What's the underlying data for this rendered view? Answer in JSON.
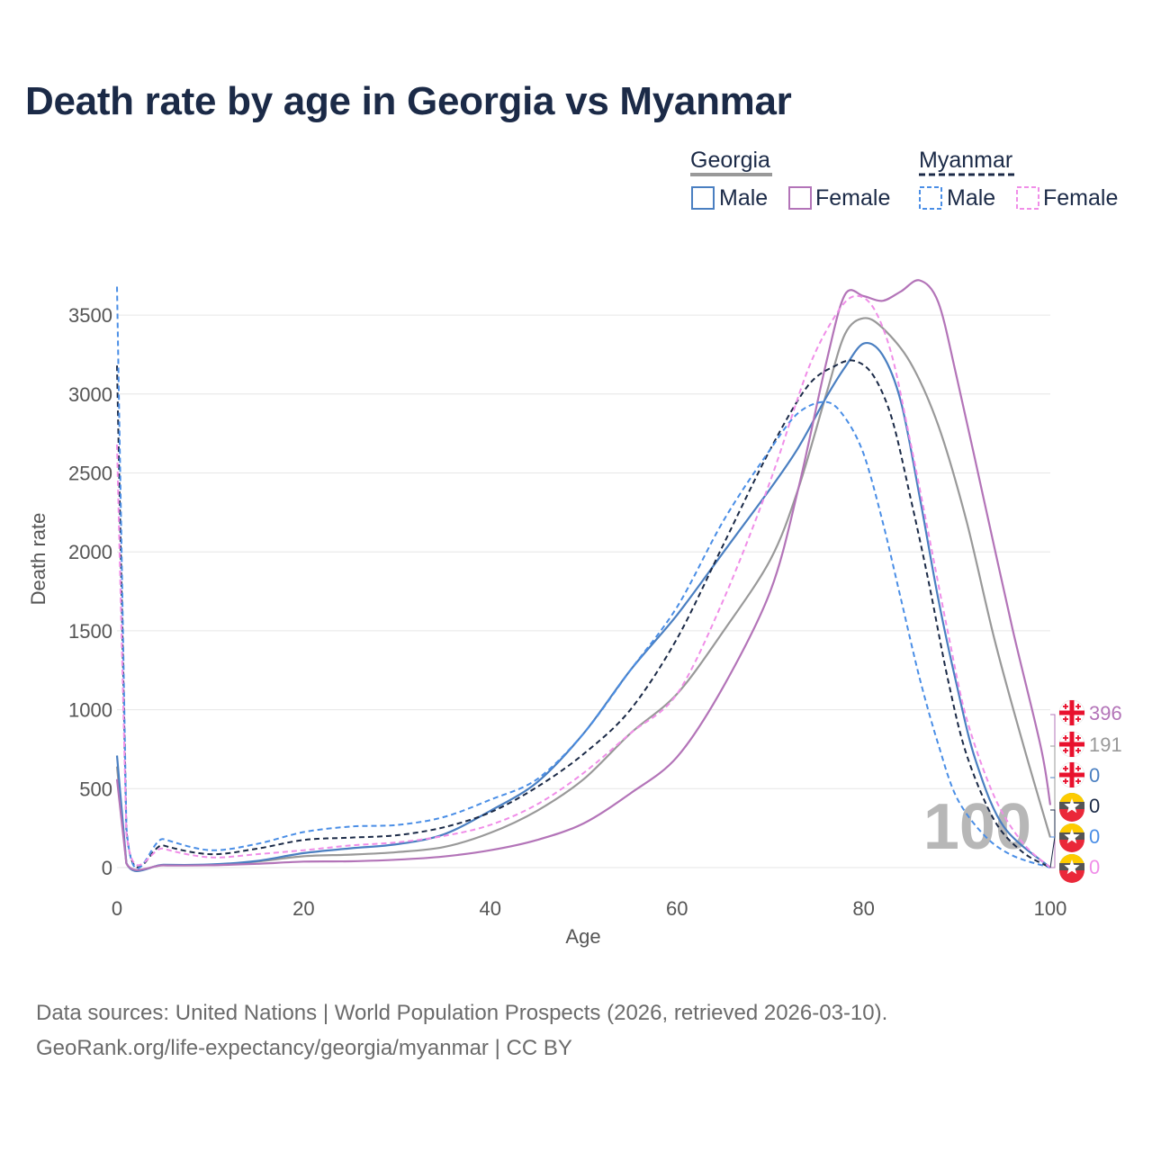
{
  "title": "Death rate by age in Georgia vs Myanmar",
  "footer": {
    "line1": "Data sources: United Nations | World Population Prospects (2026, retrieved 2026-03-10).",
    "line2": "GeoRank.org/life-expectancy/georgia/myanmar | CC BY"
  },
  "colors": {
    "georgia_total": "#999999",
    "myanmar_total": "#1b2a47",
    "male": "#4a7fc1",
    "female": "#b374b8",
    "myanmar_male": "#4a8ee6",
    "myanmar_female": "#f08ee8"
  },
  "legend": {
    "georgia": "Georgia",
    "myanmar": "Myanmar",
    "male": "Male",
    "female": "Female"
  },
  "current_age_label": "100",
  "chart_data": {
    "type": "line",
    "title": "Death rate by age in Georgia vs Myanmar",
    "xlabel": "Age",
    "ylabel": "Death rate",
    "xlim": [
      0,
      100
    ],
    "ylim": [
      0,
      3700
    ],
    "xticks": [
      0,
      20,
      40,
      60,
      80,
      100
    ],
    "yticks": [
      0,
      500,
      1000,
      1500,
      2000,
      2500,
      3000,
      3500
    ],
    "grid": true,
    "series": [
      {
        "name": "Georgia Total",
        "country": "Georgia",
        "sex": "Total",
        "style": "solid",
        "color_key": "georgia_total",
        "points": [
          [
            0,
            640
          ],
          [
            1,
            28
          ],
          [
            5,
            16
          ],
          [
            10,
            18
          ],
          [
            15,
            38
          ],
          [
            20,
            72
          ],
          [
            25,
            82
          ],
          [
            30,
            98
          ],
          [
            35,
            130
          ],
          [
            40,
            220
          ],
          [
            45,
            360
          ],
          [
            50,
            560
          ],
          [
            55,
            850
          ],
          [
            60,
            1100
          ],
          [
            65,
            1500
          ],
          [
            70,
            1950
          ],
          [
            73,
            2400
          ],
          [
            76,
            3000
          ],
          [
            78,
            3380
          ],
          [
            80,
            3480
          ],
          [
            82,
            3420
          ],
          [
            85,
            3200
          ],
          [
            88,
            2800
          ],
          [
            91,
            2200
          ],
          [
            94,
            1450
          ],
          [
            97,
            800
          ],
          [
            100,
            191
          ]
        ]
      },
      {
        "name": "Georgia Male",
        "country": "Georgia",
        "sex": "Male",
        "style": "solid",
        "color_key": "male",
        "points": [
          [
            0,
            710
          ],
          [
            1,
            30
          ],
          [
            5,
            18
          ],
          [
            10,
            20
          ],
          [
            15,
            42
          ],
          [
            20,
            92
          ],
          [
            25,
            122
          ],
          [
            30,
            148
          ],
          [
            35,
            210
          ],
          [
            40,
            360
          ],
          [
            45,
            540
          ],
          [
            50,
            850
          ],
          [
            55,
            1250
          ],
          [
            60,
            1600
          ],
          [
            65,
            2000
          ],
          [
            70,
            2400
          ],
          [
            73,
            2660
          ],
          [
            76,
            2980
          ],
          [
            78,
            3170
          ],
          [
            80,
            3320
          ],
          [
            82,
            3250
          ],
          [
            84,
            2950
          ],
          [
            86,
            2350
          ],
          [
            88,
            1700
          ],
          [
            90,
            1150
          ],
          [
            92,
            680
          ],
          [
            95,
            260
          ],
          [
            100,
            0
          ]
        ]
      },
      {
        "name": "Georgia Female",
        "country": "Georgia",
        "sex": "Female",
        "style": "solid",
        "color_key": "female",
        "points": [
          [
            0,
            560
          ],
          [
            1,
            26
          ],
          [
            5,
            14
          ],
          [
            10,
            15
          ],
          [
            15,
            24
          ],
          [
            20,
            38
          ],
          [
            25,
            40
          ],
          [
            30,
            50
          ],
          [
            35,
            70
          ],
          [
            40,
            110
          ],
          [
            45,
            175
          ],
          [
            50,
            280
          ],
          [
            55,
            470
          ],
          [
            60,
            700
          ],
          [
            65,
            1150
          ],
          [
            70,
            1750
          ],
          [
            73,
            2400
          ],
          [
            76,
            3200
          ],
          [
            78,
            3630
          ],
          [
            80,
            3620
          ],
          [
            82,
            3590
          ],
          [
            84,
            3650
          ],
          [
            86,
            3720
          ],
          [
            88,
            3580
          ],
          [
            90,
            3100
          ],
          [
            93,
            2300
          ],
          [
            96,
            1500
          ],
          [
            99,
            760
          ],
          [
            100,
            396
          ]
        ]
      },
      {
        "name": "Myanmar Total",
        "country": "Myanmar",
        "sex": "Total",
        "style": "dashed",
        "color_key": "myanmar_total",
        "points": [
          [
            0,
            3180
          ],
          [
            1,
            240
          ],
          [
            5,
            140
          ],
          [
            10,
            85
          ],
          [
            15,
            120
          ],
          [
            20,
            175
          ],
          [
            25,
            190
          ],
          [
            30,
            205
          ],
          [
            35,
            255
          ],
          [
            40,
            350
          ],
          [
            45,
            510
          ],
          [
            50,
            720
          ],
          [
            55,
            1000
          ],
          [
            60,
            1450
          ],
          [
            65,
            2050
          ],
          [
            70,
            2650
          ],
          [
            74,
            3050
          ],
          [
            77,
            3180
          ],
          [
            79,
            3210
          ],
          [
            81,
            3120
          ],
          [
            83,
            2850
          ],
          [
            85,
            2350
          ],
          [
            87,
            1800
          ],
          [
            89,
            1200
          ],
          [
            91,
            720
          ],
          [
            94,
            300
          ],
          [
            97,
            100
          ],
          [
            100,
            0
          ]
        ]
      },
      {
        "name": "Myanmar Male",
        "country": "Myanmar",
        "sex": "Male",
        "style": "dashed",
        "color_key": "myanmar_male",
        "points": [
          [
            0,
            3680
          ],
          [
            1,
            260
          ],
          [
            5,
            180
          ],
          [
            10,
            110
          ],
          [
            15,
            150
          ],
          [
            20,
            225
          ],
          [
            25,
            260
          ],
          [
            30,
            270
          ],
          [
            35,
            320
          ],
          [
            40,
            430
          ],
          [
            45,
            560
          ],
          [
            50,
            850
          ],
          [
            55,
            1250
          ],
          [
            60,
            1650
          ],
          [
            65,
            2200
          ],
          [
            70,
            2650
          ],
          [
            73,
            2880
          ],
          [
            76,
            2950
          ],
          [
            78,
            2850
          ],
          [
            80,
            2620
          ],
          [
            82,
            2200
          ],
          [
            84,
            1700
          ],
          [
            86,
            1200
          ],
          [
            88,
            780
          ],
          [
            90,
            440
          ],
          [
            93,
            200
          ],
          [
            96,
            75
          ],
          [
            100,
            0
          ]
        ]
      },
      {
        "name": "Myanmar Female",
        "country": "Myanmar",
        "sex": "Female",
        "style": "dashed",
        "color_key": "myanmar_female",
        "points": [
          [
            0,
            2680
          ],
          [
            1,
            220
          ],
          [
            5,
            120
          ],
          [
            10,
            65
          ],
          [
            15,
            85
          ],
          [
            20,
            110
          ],
          [
            25,
            140
          ],
          [
            30,
            160
          ],
          [
            35,
            200
          ],
          [
            40,
            270
          ],
          [
            45,
            400
          ],
          [
            50,
            600
          ],
          [
            55,
            850
          ],
          [
            60,
            1100
          ],
          [
            65,
            1700
          ],
          [
            70,
            2450
          ],
          [
            74,
            3150
          ],
          [
            77,
            3500
          ],
          [
            79,
            3620
          ],
          [
            81,
            3550
          ],
          [
            83,
            3250
          ],
          [
            85,
            2700
          ],
          [
            87,
            2100
          ],
          [
            89,
            1500
          ],
          [
            91,
            950
          ],
          [
            94,
            450
          ],
          [
            97,
            160
          ],
          [
            100,
            0
          ]
        ]
      }
    ],
    "end_labels": [
      {
        "country": "Georgia",
        "value": "396",
        "color_key": "female"
      },
      {
        "country": "Georgia",
        "value": "191",
        "color_key": "georgia_total"
      },
      {
        "country": "Georgia",
        "value": "0",
        "color_key": "male"
      },
      {
        "country": "Myanmar",
        "value": "0",
        "color_key": "myanmar_total"
      },
      {
        "country": "Myanmar",
        "value": "0",
        "color_key": "myanmar_male"
      },
      {
        "country": "Myanmar",
        "value": "0",
        "color_key": "myanmar_female"
      }
    ]
  }
}
